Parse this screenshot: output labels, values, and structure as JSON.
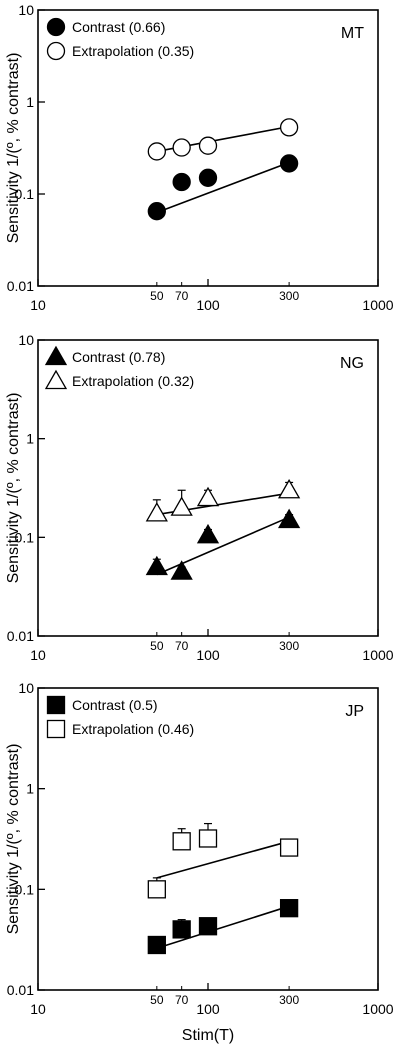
{
  "figure": {
    "ylabel": "Sensitivity 1/(º, % contrast)",
    "xlabel": "Stim(T)"
  },
  "chart_data": [
    {
      "type": "scatter",
      "panel_label": "MT",
      "marker": "circle",
      "x_scale": "log",
      "y_scale": "log",
      "xlim": [
        10,
        1000
      ],
      "ylim": [
        0.01,
        10
      ],
      "x_major_ticks": [
        "10",
        "100",
        "1000"
      ],
      "x_minor_ticks": [
        "50",
        "70",
        "300"
      ],
      "y_ticks": [
        "0.01",
        "0.1",
        "1",
        "10"
      ],
      "ylabel": "Sensitivity 1/(º, % contrast)",
      "xlabel": "",
      "legend_position": "top-left",
      "series": [
        {
          "name": "Contrast (0.66)",
          "fill": "#000000",
          "x": [
            50,
            70,
            100,
            300
          ],
          "y": [
            0.065,
            0.135,
            0.15,
            0.215
          ],
          "err_hi": [
            0.075,
            0.16,
            0.17,
            0.255
          ],
          "fit": {
            "x": [
              50,
              300
            ],
            "y": [
              0.063,
              0.22
            ]
          }
        },
        {
          "name": "Extrapolation (0.35)",
          "fill": "#ffffff",
          "x": [
            50,
            70,
            100,
            300
          ],
          "y": [
            0.29,
            0.32,
            0.335,
            0.53
          ],
          "err_hi": [
            0.31,
            0.38,
            0.36,
            0.6
          ],
          "fit": {
            "x": [
              50,
              300
            ],
            "y": [
              0.29,
              0.54
            ]
          }
        }
      ]
    },
    {
      "type": "scatter",
      "panel_label": "NG",
      "marker": "triangle",
      "x_scale": "log",
      "y_scale": "log",
      "xlim": [
        10,
        1000
      ],
      "ylim": [
        0.01,
        10
      ],
      "x_major_ticks": [
        "10",
        "100",
        "1000"
      ],
      "x_minor_ticks": [
        "50",
        "70",
        "300"
      ],
      "y_ticks": [
        "0.01",
        "0.1",
        "1",
        "10"
      ],
      "ylabel": "Sensitivity 1/(º, % contrast)",
      "xlabel": "",
      "legend_position": "top-left",
      "series": [
        {
          "name": "Contrast (0.78)",
          "fill": "#000000",
          "x": [
            50,
            70,
            100,
            300
          ],
          "y": [
            0.05,
            0.045,
            0.105,
            0.15
          ],
          "err_hi": [
            0.06,
            0.05,
            0.12,
            0.17
          ],
          "fit": {
            "x": [
              50,
              300
            ],
            "y": [
              0.042,
              0.16
            ]
          }
        },
        {
          "name": "Extrapolation (0.32)",
          "fill": "#ffffff",
          "x": [
            50,
            70,
            100,
            300
          ],
          "y": [
            0.175,
            0.2,
            0.25,
            0.3
          ],
          "err_hi": [
            0.24,
            0.3,
            0.3,
            0.36
          ],
          "fit": {
            "x": [
              50,
              300
            ],
            "y": [
              0.17,
              0.28
            ]
          }
        }
      ]
    },
    {
      "type": "scatter",
      "panel_label": "JP",
      "marker": "square",
      "x_scale": "log",
      "y_scale": "log",
      "xlim": [
        10,
        1000
      ],
      "ylim": [
        0.01,
        10
      ],
      "x_major_ticks": [
        "10",
        "100",
        "1000"
      ],
      "x_minor_ticks": [
        "50",
        "70",
        "300"
      ],
      "y_ticks": [
        "0.01",
        "0.1",
        "1",
        "10"
      ],
      "ylabel": "Sensitivity 1/(º, % contrast)",
      "xlabel": "Stim(T)",
      "legend_position": "top-left",
      "series": [
        {
          "name": "Contrast (0.5)",
          "fill": "#000000",
          "x": [
            50,
            70,
            100,
            300
          ],
          "y": [
            0.028,
            0.04,
            0.043,
            0.065
          ],
          "err_hi": [
            0.033,
            0.05,
            0.05,
            0.075
          ],
          "fit": {
            "x": [
              50,
              300
            ],
            "y": [
              0.026,
              0.068
            ]
          }
        },
        {
          "name": "Extrapolation (0.46)",
          "fill": "#ffffff",
          "x": [
            50,
            70,
            100,
            300
          ],
          "y": [
            0.1,
            0.3,
            0.32,
            0.26
          ],
          "err_hi": [
            0.13,
            0.4,
            0.45,
            0.3
          ],
          "fit": {
            "x": [
              50,
              300
            ],
            "y": [
              0.13,
              0.3
            ]
          }
        }
      ]
    }
  ]
}
